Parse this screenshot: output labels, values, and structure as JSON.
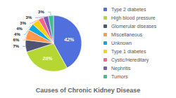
{
  "chart_data": {
    "type": "pie",
    "title": "Causes of Chronic Kidney Disease",
    "categories": [
      "Type 2 diabetes",
      "High blood pressure",
      "Glomerular diseases",
      "Miscellaneous",
      "Unknown",
      "Type 1 diabetes",
      "Cystic/Hereditary",
      "Nephritis",
      "Tumors"
    ],
    "values": [
      42,
      28,
      7,
      6,
      4,
      4,
      3,
      3,
      3
    ],
    "value_labels": [
      "42%",
      "28%",
      "7%",
      "6%",
      "4%",
      "4%",
      "3%",
      "3%",
      "3%"
    ],
    "data_labels": true,
    "legend": "upper right"
  }
}
